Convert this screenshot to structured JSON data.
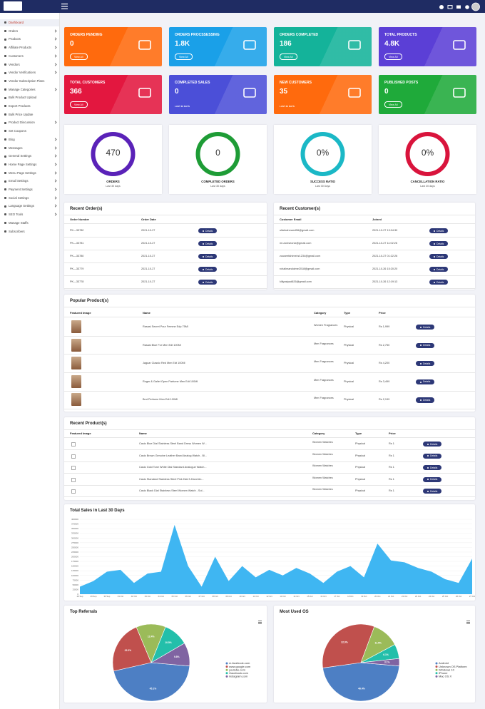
{
  "sidebar": [
    "Dashboard",
    "Orders",
    "Products",
    "Affiliate Products",
    "Customers",
    "Vendors",
    "Vendor Verifications",
    "Vendor Subscription Plans",
    "Manage Categories",
    "Bulk Product Upload",
    "Export Products",
    "Bulk Price Update",
    "Product Discussion",
    "Set Coupons",
    "Blog",
    "Messages",
    "General Settings",
    "Home Page Settings",
    "Menu Page Settings",
    "Email Settings",
    "Payment Settings",
    "Social Settings",
    "Language Settings",
    "SEO Tools",
    "Manage Staffs",
    "Subscribers"
  ],
  "cards": [
    {
      "title": "ORDERS PENDING",
      "value": "0",
      "button": "View All",
      "color": "#ff6a0d"
    },
    {
      "title": "ORDERS PROCSSESSING",
      "value": "1.8K",
      "button": "View All",
      "color": "#1aa0e8"
    },
    {
      "title": "ORDERS COMPLETED",
      "value": "186",
      "button": "View All",
      "color": "#14b39a"
    },
    {
      "title": "TOTAL PRODUCTS",
      "value": "4.8K",
      "button": "View All",
      "color": "#5b3fd6"
    },
    {
      "title": "TOTAL CUSTOMERS",
      "value": "366",
      "button": "View All",
      "color": "#e3173f"
    },
    {
      "title": "COMPLETED SALES",
      "value": "0",
      "note": "LAST 30 DAYS",
      "color": "#4b4fd8"
    },
    {
      "title": "NEW CUSTOMERS",
      "value": "35",
      "note": "LAST 30 DAYS",
      "color": "#ff6a0d"
    },
    {
      "title": "PUBLISHED POSTS",
      "value": "0",
      "button": "View All",
      "color": "#1faa3a"
    }
  ],
  "stats": [
    {
      "value": "470",
      "label": "ORDERS",
      "note": "Last 30 days",
      "color": "#5a22b8"
    },
    {
      "value": "0",
      "label": "COMPLETED ORDERS",
      "note": "Last 30 days",
      "color": "#1e9c36"
    },
    {
      "value": "0%",
      "label": "SUCCESS RATIO",
      "note": "Last 30 Days",
      "color": "#1bb8c6"
    },
    {
      "value": "0%",
      "label": "CANCELLATION RATIO",
      "note": "Last 30 days",
      "color": "#d9143c"
    }
  ],
  "details_button": "Details",
  "recent_orders": {
    "title": "Recent Order(s)",
    "columns": [
      "Order Number",
      "Order Date"
    ],
    "rows": [
      [
        "PK—33782",
        "2021-10-27"
      ],
      [
        "PK—33781",
        "2021-10-27"
      ],
      [
        "PK—33780",
        "2021-10-27"
      ],
      [
        "PK—33779",
        "2021-10-27"
      ],
      [
        "PK—33778",
        "2021-10-27"
      ]
    ]
  },
  "recent_customers": {
    "title": "Recent Customer(s)",
    "columns": [
      "Customer Email",
      "Joined"
    ],
    "rows": [
      [
        "ullahrahman456@gmail.com",
        "2021-10-27 13:04:30"
      ],
      [
        "mr.zoniseoniz@gmail.com",
        "2021-10-27 11:02:26"
      ],
      [
        "zouseefahimeirz1234@gmail.com",
        "2021-10-27 01:22:26"
      ],
      [
        "rchalimandoime2018@gmail.com",
        "2021-10-26 15:20:20"
      ],
      [
        "killyasiyad626@gmail.com",
        "2021-10-26 12:19:13"
      ]
    ]
  },
  "popular_products": {
    "title": "Popular Product(s)",
    "columns": [
      "Featured Image",
      "Name",
      "Category",
      "Type",
      "Price"
    ],
    "rows": [
      [
        "Rasasi Secret Pour Femme Edp 75Ml",
        "Women Fragrances",
        "Physical",
        "Rs 1,999"
      ],
      [
        "Rasasi Blue For Men Edt 100Ml",
        "Men Fragrances",
        "Physical",
        "Rs 2,750"
      ],
      [
        "Jaguar Classic Red Men Edt 100Ml",
        "Men Fragrances",
        "Physical",
        "Rs 4,200"
      ],
      [
        "Roger & Gallet Open Parfume Men Edt 100Ml",
        "Men Fragrances",
        "Physical",
        "Rs 3,499"
      ],
      [
        "Brut Perfume Men Edt 100Ml",
        "Men Fragrances",
        "Physical",
        "Rs 2,199"
      ]
    ]
  },
  "recent_products": {
    "title": "Recent Product(s)",
    "columns": [
      "Featured Image",
      "Name",
      "Category",
      "Type",
      "Price"
    ],
    "rows": [
      [
        "Casio Blue Dial Stainless Steel Band Dress Women W...",
        "Women Watches",
        "Physical",
        "Rs 1"
      ],
      [
        "Casio Brown Genuine Leather Band Analog Watch - Bl...",
        "Women Watches",
        "Physical",
        "Rs 1"
      ],
      [
        "Casio Gold Tone White Dial Standard Analogue Watch...",
        "Women Watches",
        "Physical",
        "Rs 1"
      ],
      [
        "Casio Standard Stainless Steel Pink Dial 3-Hand An...",
        "Women Watches",
        "Physical",
        "Rs 1"
      ],
      [
        "Casio Black Dial Stainless Steel Women Watch - Sol...",
        "Women Watches",
        "Physical",
        "Rs 1"
      ]
    ]
  },
  "sales_chart": {
    "type": "area",
    "title": "Total Sales in Last 30 Days",
    "color": "#3fb6f2",
    "categories": [
      "28 Sep",
      "29 Sep",
      "30 Sep",
      "01 Oct",
      "02 Oct",
      "03 Oct",
      "04 Oct",
      "05 Oct",
      "06 Oct",
      "07 Oct",
      "08 Oct",
      "09 Oct",
      "10 Oct",
      "11 Oct",
      "12 Oct",
      "13 Oct",
      "14 Oct",
      "15 Oct",
      "16 Oct",
      "17 Oct",
      "18 Oct",
      "19 Oct",
      "20 Oct",
      "21 Oct",
      "22 Oct",
      "23 Oct",
      "24 Oct",
      "25 Oct",
      "26 Oct",
      "27 Oct"
    ],
    "values": [
      40000,
      70000,
      120000,
      130000,
      60000,
      110000,
      120000,
      370000,
      150000,
      40000,
      200000,
      70000,
      150000,
      90000,
      130000,
      100000,
      140000,
      110000,
      60000,
      120000,
      150000,
      90000,
      270000,
      180000,
      170000,
      140000,
      120000,
      80000,
      60000,
      190000
    ],
    "ylim": [
      0,
      400000
    ],
    "yticks": [
      0,
      25000,
      50000,
      75000,
      100000,
      125000,
      150000,
      175000,
      200000,
      225000,
      250000,
      275000,
      300000,
      325000,
      350000,
      375000,
      400000
    ],
    "grid": true
  },
  "pies": [
    {
      "type": "pie",
      "title": "Top Referrals",
      "categories": [
        "m.facebook.com",
        "www.google.com",
        "youtube.com",
        "l.facebook.com",
        "instagram.com"
      ],
      "values": [
        45.1,
        22.2,
        12.4,
        10.5,
        9.8
      ],
      "value_labels": [
        "45.1%",
        "22.2%",
        "12.4%",
        "10.5%",
        "9.8%"
      ],
      "colors": [
        "#4d7fc4",
        "#c0504d",
        "#9bbb59",
        "#23bfaa",
        "#8064a2"
      ]
    },
    {
      "type": "pie",
      "title": "Most Used OS",
      "categories": [
        "Android",
        "Unknown OS Platform",
        "Windows 10",
        "iPhone",
        "Mac OS X"
      ],
      "values": [
        46.4,
        32.9,
        11.5,
        6.1,
        3.1
      ],
      "value_labels": [
        "46.4%",
        "32.9%",
        "11.5%",
        "6.1%",
        "3.1%"
      ],
      "colors": [
        "#4d7fc4",
        "#c0504d",
        "#9bbb59",
        "#23bfaa",
        "#8064a2"
      ]
    }
  ]
}
